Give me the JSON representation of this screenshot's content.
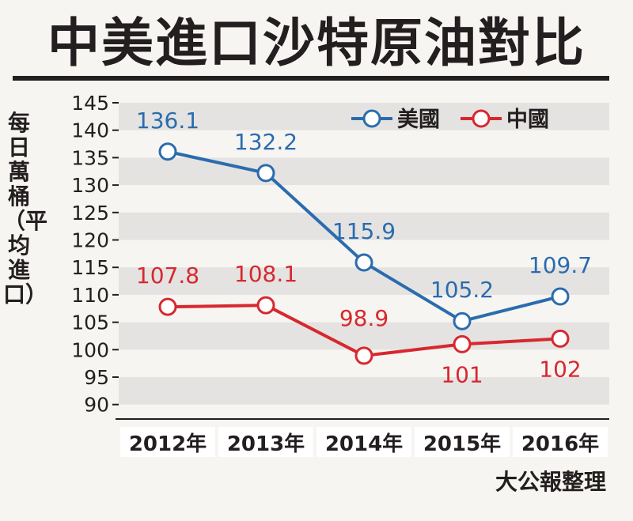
{
  "chart_data": {
    "type": "line",
    "title": "中美進口沙特原油對比",
    "ylabel": "每日萬桶（平均進口）",
    "xlabel": "",
    "categories": [
      "2012年",
      "2013年",
      "2014年",
      "2015年",
      "2016年"
    ],
    "y_ticks": [
      90,
      95,
      100,
      105,
      110,
      115,
      120,
      125,
      130,
      135,
      140,
      145
    ],
    "ylim": [
      87,
      149
    ],
    "grid": "horizontal bands",
    "legend": "top-right",
    "series": [
      {
        "name": "美國",
        "color": "#2a6cae",
        "values": [
          136.1,
          132.2,
          115.9,
          105.2,
          109.7
        ],
        "labels": [
          "136.1",
          "132.2",
          "115.9",
          "105.2",
          "109.7"
        ]
      },
      {
        "name": "中國",
        "color": "#d7282f",
        "values": [
          107.8,
          108.1,
          98.9,
          101,
          102
        ],
        "labels": [
          "107.8",
          "108.1",
          "98.9",
          "101",
          "102"
        ]
      }
    ],
    "source": "大公報整理"
  }
}
